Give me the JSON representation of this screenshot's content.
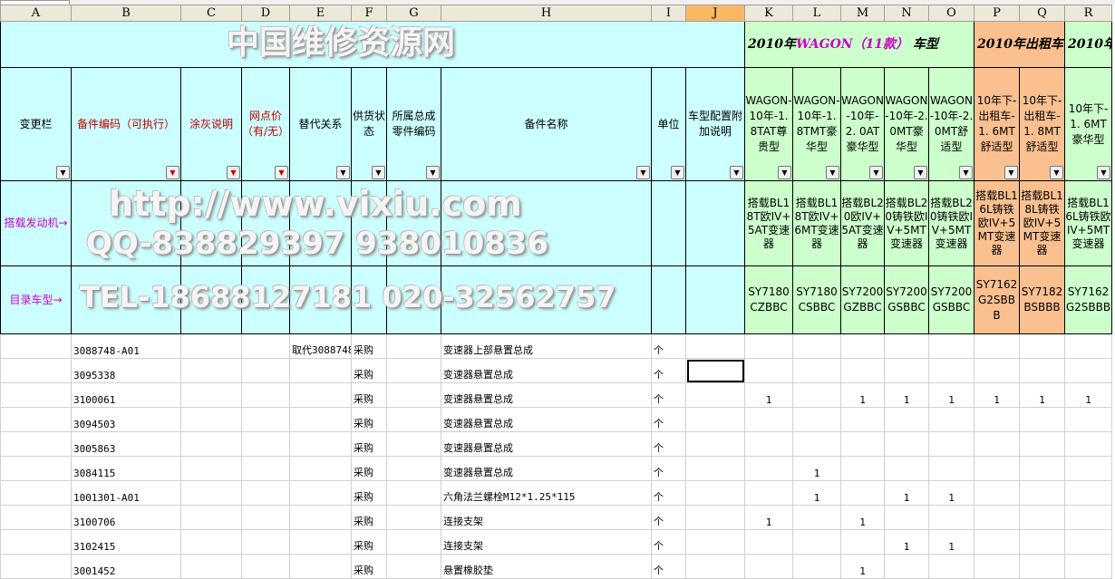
{
  "columns": [
    "A",
    "B",
    "C",
    "D",
    "E",
    "F",
    "G",
    "H",
    "I",
    "J",
    "K",
    "L",
    "M",
    "N",
    "O",
    "P",
    "Q",
    "R"
  ],
  "group_titles": {
    "wagon_prefix": "2010年",
    "wagon_name": "WAGON（11款）",
    "wagon_suffix": " 车型",
    "taxi": "2010年出租车",
    "last": "2010年"
  },
  "headers": [
    "变更栏",
    "备件编码（可执行）",
    "涂灰说明",
    "网点价（有/无）",
    "替代关系",
    "供货状态",
    "所属总成零件编码",
    "备件名称",
    "单位",
    "车型配置附加说明",
    "WAGON-10年-1. 8TAT尊贵型",
    "WAGON-10年-1. 8TMT豪华型",
    "WAGON-10年-2. 0AT豪华型",
    "WAGON-10年-2. 0MT豪华型",
    "WAGON-10年-2. 0MT舒适型",
    "10年下-出租车-1. 6MT舒适型",
    "10年下-出租车-1. 8MT舒适型",
    "10年下-1. 6MT豪华型"
  ],
  "engine_label": "搭载发动机→",
  "engines": [
    "搭载BL18T欧IV+5AT变速器",
    "搭载BL18T欧IV+6MT变速器",
    "搭载BL20欧IV+5AT变速器",
    "搭载BL20铸铁欧IV+5MT变速器",
    "搭载BL20铸铁欧IV+5MT变速器",
    "搭载BL16L铸铁欧IV+5MT变速器",
    "搭载BL18L铸铁欧IV+5MT变速器",
    "搭载BL16L铸铁欧IV+5MT变速器"
  ],
  "model_label": "目录车型→",
  "models": [
    "SY7180CZBBC",
    "SY7180CSBBC",
    "SY7200GZBBC",
    "SY7200GSBBC",
    "SY7200GSBBC",
    "SY7162G2SBBB",
    "SY7182BSBBB",
    "SY7162G2SBBB"
  ],
  "rows": [
    {
      "code": "3088748-A01",
      "replace": "取代3088748",
      "supply": "采购",
      "name": "变速器上部悬置总成",
      "unit": "个",
      "q": [
        "",
        "",
        "",
        "",
        "",
        "",
        "",
        ""
      ]
    },
    {
      "code": "3095338",
      "replace": "",
      "supply": "采购",
      "name": "变速器悬置总成",
      "unit": "个",
      "q": [
        "",
        "",
        "",
        "",
        "",
        "",
        "",
        ""
      ]
    },
    {
      "code": "3100061",
      "replace": "",
      "supply": "采购",
      "name": "变速器悬置总成",
      "unit": "个",
      "q": [
        "1",
        "",
        "1",
        "1",
        "1",
        "1",
        "1",
        "1"
      ]
    },
    {
      "code": "3094503",
      "replace": "",
      "supply": "采购",
      "name": "变速器悬置总成",
      "unit": "个",
      "q": [
        "",
        "",
        "",
        "",
        "",
        "",
        "",
        ""
      ]
    },
    {
      "code": "3005863",
      "replace": "",
      "supply": "采购",
      "name": "变速器悬置总成",
      "unit": "个",
      "q": [
        "",
        "",
        "",
        "",
        "",
        "",
        "",
        ""
      ]
    },
    {
      "code": "3084115",
      "replace": "",
      "supply": "采购",
      "name": "变速器悬置总成",
      "unit": "个",
      "q": [
        "",
        "1",
        "",
        "",
        "",
        "",
        "",
        ""
      ]
    },
    {
      "code": "1001301-A01",
      "replace": "",
      "supply": "采购",
      "name": "六角法兰螺栓M12*1.25*115",
      "unit": "个",
      "q": [
        "",
        "1",
        "",
        "1",
        "1",
        "",
        "",
        ""
      ]
    },
    {
      "code": "3100706",
      "replace": "",
      "supply": "采购",
      "name": "连接支架",
      "unit": "个",
      "q": [
        "1",
        "",
        "1",
        "",
        "",
        "",
        "",
        ""
      ]
    },
    {
      "code": "3102415",
      "replace": "",
      "supply": "采购",
      "name": "连接支架",
      "unit": "个",
      "q": [
        "",
        "",
        "",
        "1",
        "1",
        "",
        "",
        ""
      ]
    },
    {
      "code": "3001452",
      "replace": "",
      "supply": "采购",
      "name": "悬置橡胶垫",
      "unit": "个",
      "q": [
        "",
        "",
        "1",
        "",
        "",
        "",
        "",
        ""
      ]
    }
  ],
  "watermark": {
    "line1": "中国维修资源网",
    "line2": "http://www.vixiu.com",
    "line3": "QQ-838829397 938010836",
    "line4": "TEL-18688127181 020-32562757"
  },
  "colors": {
    "header_cyan": "#ccffff",
    "wagon_green": "#ccffcc",
    "taxi_orange": "#fac090",
    "selected_col": "#f9b963"
  }
}
